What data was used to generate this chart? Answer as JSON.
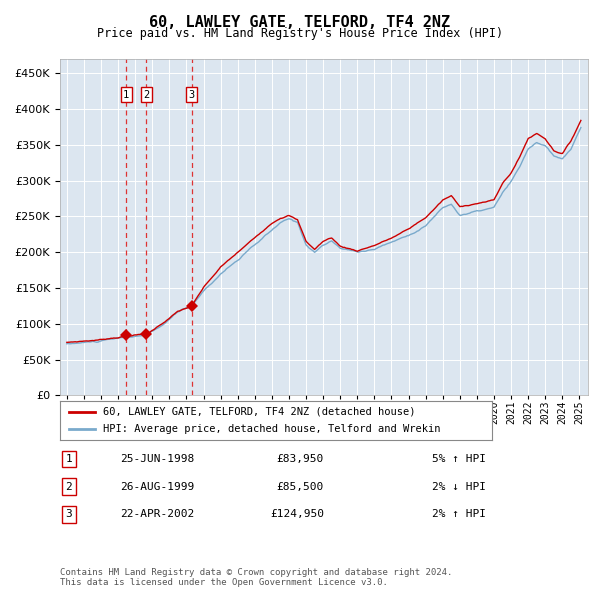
{
  "title": "60, LAWLEY GATE, TELFORD, TF4 2NZ",
  "subtitle": "Price paid vs. HM Land Registry's House Price Index (HPI)",
  "legend_line1": "60, LAWLEY GATE, TELFORD, TF4 2NZ (detached house)",
  "legend_line2": "HPI: Average price, detached house, Telford and Wrekin",
  "transactions": [
    {
      "num": "1",
      "date": "25-JUN-1998",
      "price": 83950,
      "year": 1998.48,
      "hpi_pct": "5% ↑ HPI"
    },
    {
      "num": "2",
      "date": "26-AUG-1999",
      "price": 85500,
      "year": 1999.65,
      "hpi_pct": "2% ↓ HPI"
    },
    {
      "num": "3",
      "date": "22-APR-2002",
      "price": 124950,
      "year": 2002.31,
      "hpi_pct": "2% ↑ HPI"
    }
  ],
  "ylim": [
    0,
    470000
  ],
  "xlim_left": 1994.6,
  "xlim_right": 2025.5,
  "plot_bg_color": "#dce6f0",
  "line_color_red": "#cc0000",
  "line_color_blue": "#7aaacc",
  "grid_color": "#ffffff",
  "dashed_line_color": "#dd3333",
  "marker_color": "#cc0000",
  "box_edge_color": "#cc0000",
  "footnote_color": "#555555",
  "footnote": "Contains HM Land Registry data © Crown copyright and database right 2024.\nThis data is licensed under the Open Government Licence v3.0.",
  "table_rows": [
    [
      "1",
      "25-JUN-1998",
      "£83,950",
      "5% ↑ HPI"
    ],
    [
      "2",
      "26-AUG-1999",
      "£85,500",
      "2% ↓ HPI"
    ],
    [
      "3",
      "22-APR-2002",
      "£124,950",
      "2% ↑ HPI"
    ]
  ],
  "hpi_anchors_years": [
    1995.0,
    1996.0,
    1997.0,
    1998.0,
    1998.5,
    1999.0,
    1999.7,
    2000.5,
    2001.5,
    2002.3,
    2003.0,
    2004.0,
    2005.0,
    2006.0,
    2007.0,
    2007.5,
    2008.0,
    2008.5,
    2009.0,
    2009.5,
    2010.0,
    2010.5,
    2011.0,
    2012.0,
    2013.0,
    2014.0,
    2015.0,
    2016.0,
    2017.0,
    2017.5,
    2018.0,
    2019.0,
    2020.0,
    2020.5,
    2021.0,
    2021.5,
    2022.0,
    2022.5,
    2023.0,
    2023.5,
    2024.0,
    2024.5,
    2025.1
  ],
  "hpi_anchors_vals": [
    72000,
    74000,
    76000,
    79000,
    80000,
    82000,
    84000,
    95000,
    115000,
    124000,
    145000,
    170000,
    190000,
    210000,
    230000,
    240000,
    245000,
    240000,
    210000,
    200000,
    210000,
    215000,
    205000,
    200000,
    205000,
    215000,
    225000,
    240000,
    265000,
    270000,
    255000,
    260000,
    265000,
    285000,
    300000,
    320000,
    345000,
    355000,
    350000,
    335000,
    330000,
    345000,
    375000
  ],
  "red_anchors_years": [
    1995.0,
    1996.0,
    1997.0,
    1998.0,
    1998.5,
    1999.0,
    1999.7,
    2000.5,
    2001.5,
    2002.3,
    2003.0,
    2004.0,
    2005.0,
    2006.0,
    2007.0,
    2007.5,
    2008.0,
    2008.5,
    2009.0,
    2009.5,
    2010.0,
    2010.5,
    2011.0,
    2012.0,
    2013.0,
    2014.0,
    2015.0,
    2016.0,
    2017.0,
    2017.5,
    2018.0,
    2019.0,
    2020.0,
    2020.5,
    2021.0,
    2021.5,
    2022.0,
    2022.5,
    2023.0,
    2023.5,
    2024.0,
    2024.5,
    2025.1
  ],
  "red_anchors_vals": [
    74000,
    76000,
    78000,
    82000,
    84000,
    85500,
    86000,
    100000,
    118000,
    124950,
    150000,
    178000,
    198000,
    218000,
    240000,
    248000,
    252000,
    245000,
    215000,
    204000,
    215000,
    220000,
    208000,
    202000,
    210000,
    220000,
    232000,
    248000,
    272000,
    278000,
    262000,
    268000,
    272000,
    295000,
    310000,
    332000,
    358000,
    365000,
    358000,
    342000,
    338000,
    355000,
    385000
  ],
  "noise_seed_hpi": 10,
  "noise_seed_red": 7,
  "noise_scale_hpi": 1200,
  "noise_scale_red": 900
}
